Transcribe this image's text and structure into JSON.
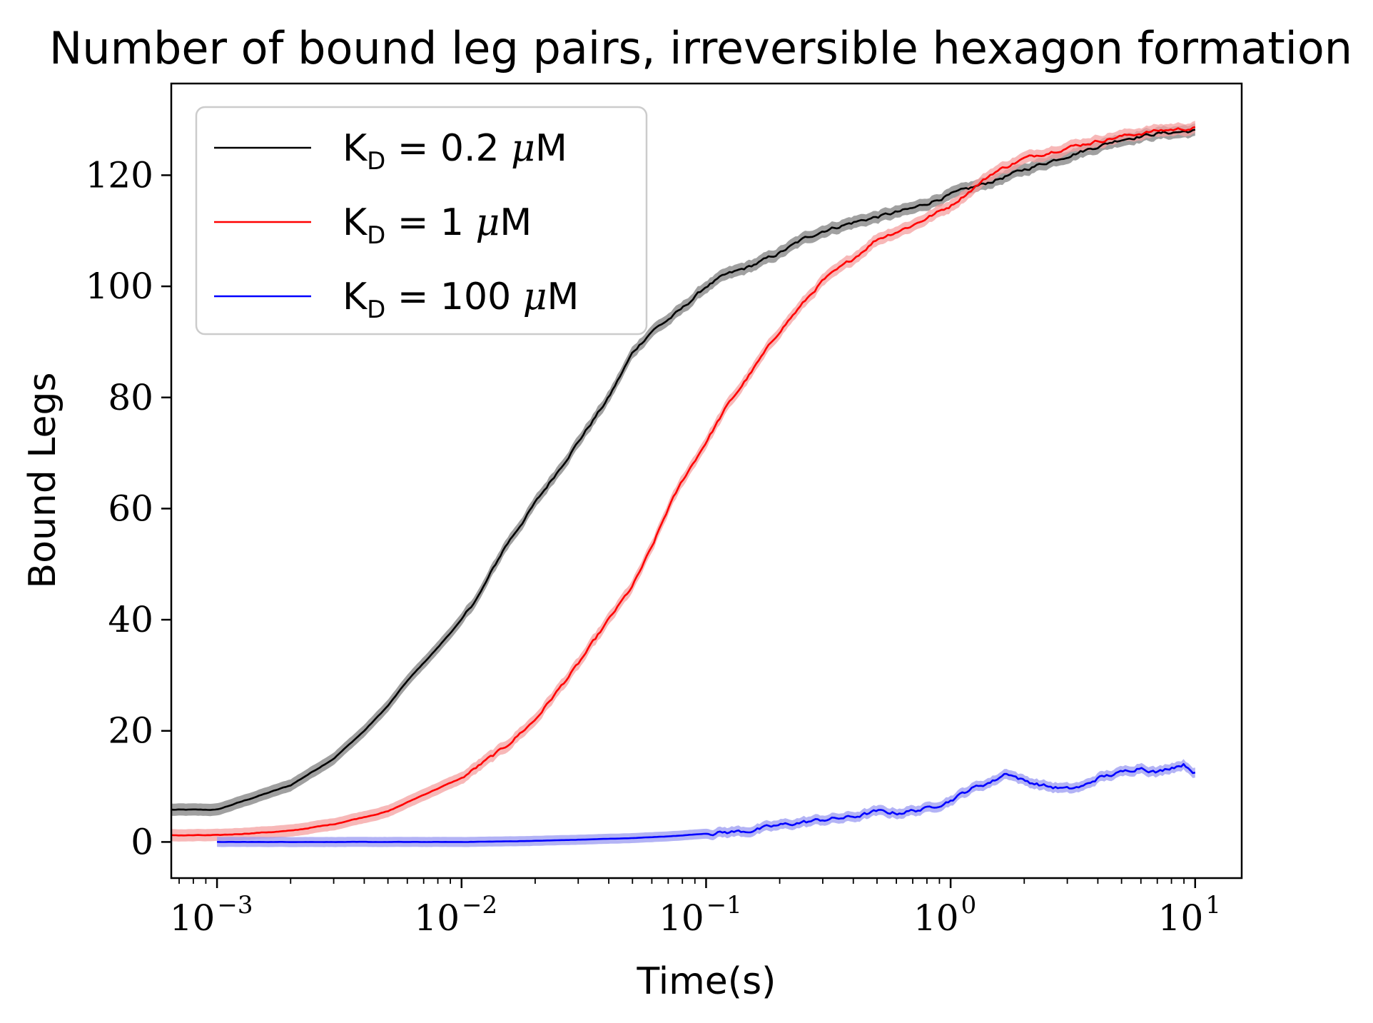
{
  "chart_data": {
    "type": "line",
    "title": "Number of bound leg pairs, irreversible hexagon formation",
    "xlabel": "Time(s)",
    "ylabel": "Bound Legs",
    "xscale": "log",
    "xlim": [
      0.00065,
      15.5
    ],
    "ylim": [
      -6.5,
      136.5
    ],
    "xticks": [
      {
        "value": 0.001,
        "base": "10",
        "exp": "−3"
      },
      {
        "value": 0.01,
        "base": "10",
        "exp": "−2"
      },
      {
        "value": 0.1,
        "base": "10",
        "exp": "−1"
      },
      {
        "value": 1,
        "base": "10",
        "exp": "0"
      },
      {
        "value": 10,
        "base": "10",
        "exp": "1"
      }
    ],
    "yticks": [
      0,
      20,
      40,
      60,
      80,
      100,
      120
    ],
    "grid": false,
    "legend_position": "upper-left",
    "series": [
      {
        "name": "K_D = 0.2 μM",
        "legend": {
          "base": "K",
          "sub": "D",
          "rest": " = 0.2 ",
          "mu": "μ",
          "unit": "M"
        },
        "color": "#000000",
        "band_color": "#808080",
        "x": [
          0.00065,
          0.001,
          0.002,
          0.003,
          0.004,
          0.005,
          0.006,
          0.008,
          0.01,
          0.012,
          0.015,
          0.018,
          0.02,
          0.025,
          0.03,
          0.04,
          0.05,
          0.06,
          0.07,
          0.08,
          0.1,
          0.12,
          0.15,
          0.2,
          0.25,
          0.3,
          0.4,
          0.5,
          0.7,
          1,
          1.5,
          2,
          3,
          5,
          7,
          10
        ],
        "y": [
          5.8,
          5.8,
          10.2,
          15,
          20,
          24.5,
          29,
          35,
          40,
          45,
          53,
          58,
          61,
          67,
          72,
          80,
          88,
          92,
          94,
          96,
          100,
          102,
          103.5,
          106,
          108.5,
          110,
          111.5,
          112.5,
          114,
          116.5,
          119,
          121,
          123.5,
          126.5,
          127.5,
          128
        ]
      },
      {
        "name": "K_D = 1 μM",
        "legend": {
          "base": "K",
          "sub": "D",
          "rest": " = 1 ",
          "mu": "μ",
          "unit": "M"
        },
        "color": "#ff0000",
        "band_color": "#f4a0a0",
        "x": [
          0.00065,
          0.001,
          0.002,
          0.003,
          0.005,
          0.007,
          0.01,
          0.015,
          0.02,
          0.03,
          0.04,
          0.05,
          0.06,
          0.07,
          0.08,
          0.1,
          0.12,
          0.15,
          0.2,
          0.25,
          0.3,
          0.4,
          0.5,
          0.7,
          1,
          1.5,
          2,
          3,
          5,
          7,
          10
        ],
        "y": [
          1.2,
          1.2,
          2,
          3.2,
          5.5,
          8.5,
          11.5,
          17,
          22,
          32,
          40,
          46,
          53,
          60,
          65,
          72,
          78,
          84,
          92,
          97,
          101,
          105,
          108.5,
          111,
          114.5,
          120.5,
          123,
          125,
          127,
          128,
          128.5
        ]
      },
      {
        "name": "K_D = 100 μM",
        "legend": {
          "base": "K",
          "sub": "D",
          "rest": " = 100 ",
          "mu": "μ",
          "unit": "M"
        },
        "color": "#0000ff",
        "band_color": "#9a9af2",
        "x": [
          0.001,
          0.005,
          0.01,
          0.015,
          0.02,
          0.03,
          0.05,
          0.07,
          0.1,
          0.15,
          0.2,
          0.3,
          0.4,
          0.5,
          0.6,
          0.8,
          1,
          1.2,
          1.5,
          1.7,
          2,
          2.5,
          3,
          3.5,
          4,
          5,
          6,
          7,
          8,
          9,
          10
        ],
        "y": [
          0,
          0,
          0,
          0.1,
          0.2,
          0.4,
          0.7,
          1,
          1.5,
          2,
          3,
          4,
          4.5,
          5.5,
          5.2,
          6,
          7.5,
          9.5,
          11,
          12.5,
          11,
          10,
          9.5,
          10,
          11.5,
          12.5,
          13.5,
          12.5,
          13.5,
          14,
          12.5
        ]
      }
    ]
  }
}
